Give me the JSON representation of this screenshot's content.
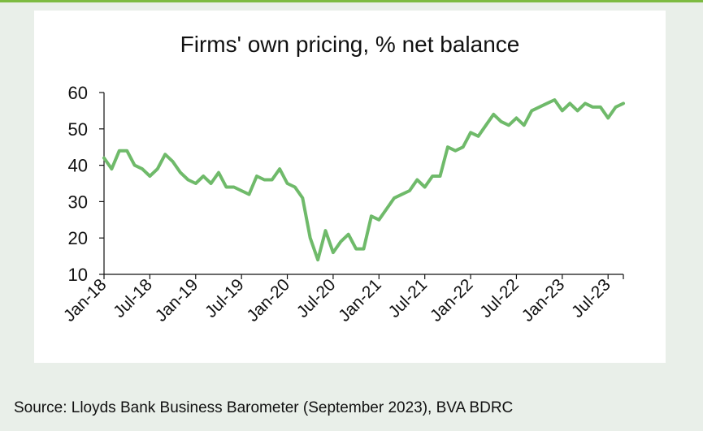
{
  "source_note": "Source: Lloyds Bank Business Barometer (September 2023), BVA BDRC",
  "chart_data": {
    "type": "line",
    "title": "Firms' own pricing, % net balance",
    "xlabel": "",
    "ylabel": "",
    "ylim": [
      10,
      60
    ],
    "yticks": [
      "10",
      "20",
      "30",
      "40",
      "50",
      "60"
    ],
    "xticks": [
      {
        "label": "Jan-18",
        "index": 0
      },
      {
        "label": "Jul-18",
        "index": 6
      },
      {
        "label": "Jan-19",
        "index": 12
      },
      {
        "label": "Jul-19",
        "index": 18
      },
      {
        "label": "Jan-20",
        "index": 24
      },
      {
        "label": "Jul-20",
        "index": 30
      },
      {
        "label": "Jan-21",
        "index": 36
      },
      {
        "label": "Jul-21",
        "index": 42
      },
      {
        "label": "Jan-22",
        "index": 48
      },
      {
        "label": "Jul-22",
        "index": 54
      },
      {
        "label": "Jan-23",
        "index": 60
      },
      {
        "label": "Jul-23",
        "index": 66
      }
    ],
    "grid": false,
    "legend": "none",
    "line_color": "#6fba6a",
    "series": [
      {
        "values": [
          42,
          39,
          44,
          44,
          40,
          39,
          37,
          39,
          43,
          41,
          38,
          36,
          35,
          37,
          35,
          38,
          34,
          34,
          33,
          32,
          37,
          36,
          36,
          39,
          35,
          34,
          31,
          20,
          14,
          22,
          16,
          19,
          21,
          17,
          17,
          26,
          25,
          28,
          31,
          32,
          33,
          36,
          34,
          37,
          37,
          45,
          44,
          45,
          49,
          48,
          51,
          54,
          52,
          51,
          53,
          51,
          55,
          56,
          57,
          58,
          55,
          57,
          55,
          57,
          56,
          56,
          53,
          56,
          57
        ]
      }
    ]
  }
}
